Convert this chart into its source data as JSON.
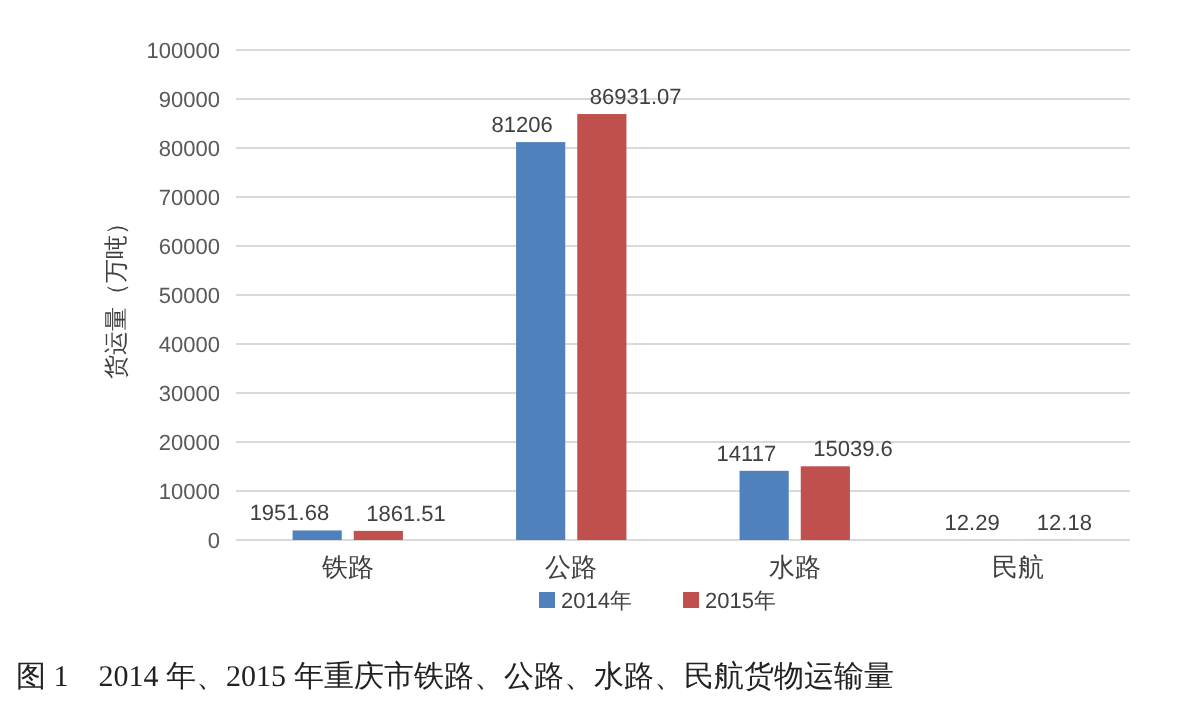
{
  "chart_data": {
    "type": "bar",
    "ylabel": "货运量（万吨）",
    "categories": [
      "铁路",
      "公路",
      "水路",
      "民航"
    ],
    "series": [
      {
        "name": "2014年",
        "color": "#4f81bd",
        "values": [
          1951.68,
          81206,
          14117,
          12.29
        ]
      },
      {
        "name": "2015年",
        "color": "#c0504d",
        "values": [
          1861.51,
          86931.07,
          15039.6,
          12.18
        ]
      }
    ],
    "ylim": [
      0,
      100000
    ],
    "yticks": [
      0,
      10000,
      20000,
      30000,
      40000,
      50000,
      60000,
      70000,
      80000,
      90000,
      100000
    ],
    "grid": "y",
    "legend": "bottom",
    "data_labels": true,
    "annotations": [
      "图 1　2014 年、2015 年重庆市铁路、公路、水路、民航货物运输量"
    ]
  }
}
